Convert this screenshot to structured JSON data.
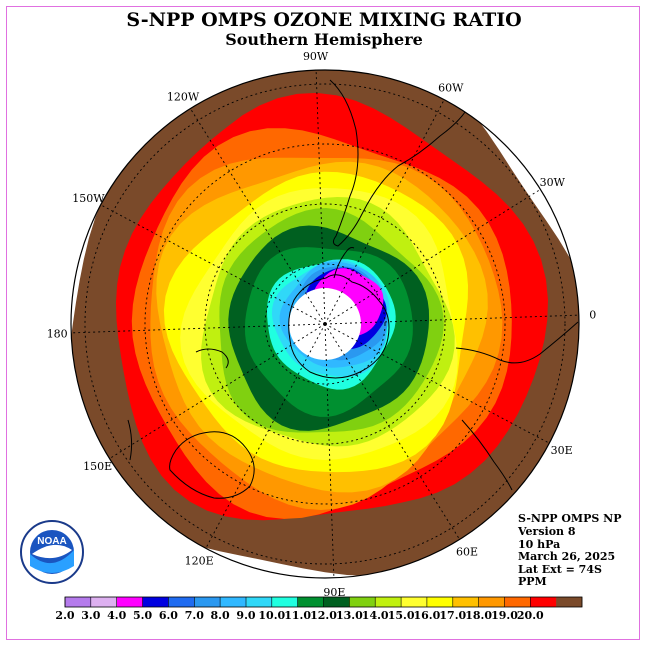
{
  "title": "S-NPP OMPS OZONE MIXING RATIO",
  "subtitle": "Southern Hemisphere",
  "info": {
    "product": "S-NPP OMPS NP",
    "version": "Version 8",
    "level": "10 hPa",
    "date": "March 26, 2025",
    "lat_ext": "Lat Ext = 74S",
    "units": "PPM"
  },
  "logo_text": "NOAA",
  "longitude_labels": [
    {
      "text": "90W",
      "lon": -90
    },
    {
      "text": "60W",
      "lon": -60
    },
    {
      "text": "30W",
      "lon": -30
    },
    {
      "text": "0",
      "lon": 0
    },
    {
      "text": "30E",
      "lon": 30
    },
    {
      "text": "60E",
      "lon": 60
    },
    {
      "text": "90E",
      "lon": 90
    },
    {
      "text": "120E",
      "lon": 120
    },
    {
      "text": "150E",
      "lon": 150
    },
    {
      "text": "180",
      "lon": 180
    },
    {
      "text": "150W",
      "lon": -150
    },
    {
      "text": "120W",
      "lon": -120
    }
  ],
  "colorbar": {
    "colors": [
      "#b57bec",
      "#ddb0f0",
      "#ff00ff",
      "#0000e0",
      "#1f6bf0",
      "#2a98f0",
      "#30b8ff",
      "#30d8f8",
      "#20ffe0",
      "#009030",
      "#006020",
      "#80d010",
      "#c0f010",
      "#ffff30",
      "#ffff00",
      "#ffc000",
      "#ff9800",
      "#ff6800",
      "#ff0000",
      "#7a4a2a"
    ],
    "labels": [
      "2.0",
      "3.0",
      "4.0",
      "5.0",
      "6.0",
      "7.0",
      "8.0",
      "9.0",
      "10.0",
      "11.0",
      "12.0",
      "13.0",
      "14.0",
      "15.0",
      "16.0",
      "17.0",
      "18.0",
      "19.0",
      "20.0"
    ]
  },
  "bands": [
    {
      "color": "#7a4a2a"
    },
    {
      "color": "#ff0000"
    },
    {
      "color": "#ff6800"
    },
    {
      "color": "#ff9800"
    },
    {
      "color": "#ffc000"
    },
    {
      "color": "#ffff00"
    },
    {
      "color": "#ffff30"
    },
    {
      "color": "#c0f010"
    },
    {
      "color": "#80d010"
    },
    {
      "color": "#006020"
    },
    {
      "color": "#009030"
    },
    {
      "color": "#20ffe0"
    },
    {
      "color": "#30d8f8"
    },
    {
      "color": "#30b8ff"
    },
    {
      "color": "#2a98f0"
    },
    {
      "color": "#0000e0"
    },
    {
      "color": "#ff00ff"
    }
  ]
}
